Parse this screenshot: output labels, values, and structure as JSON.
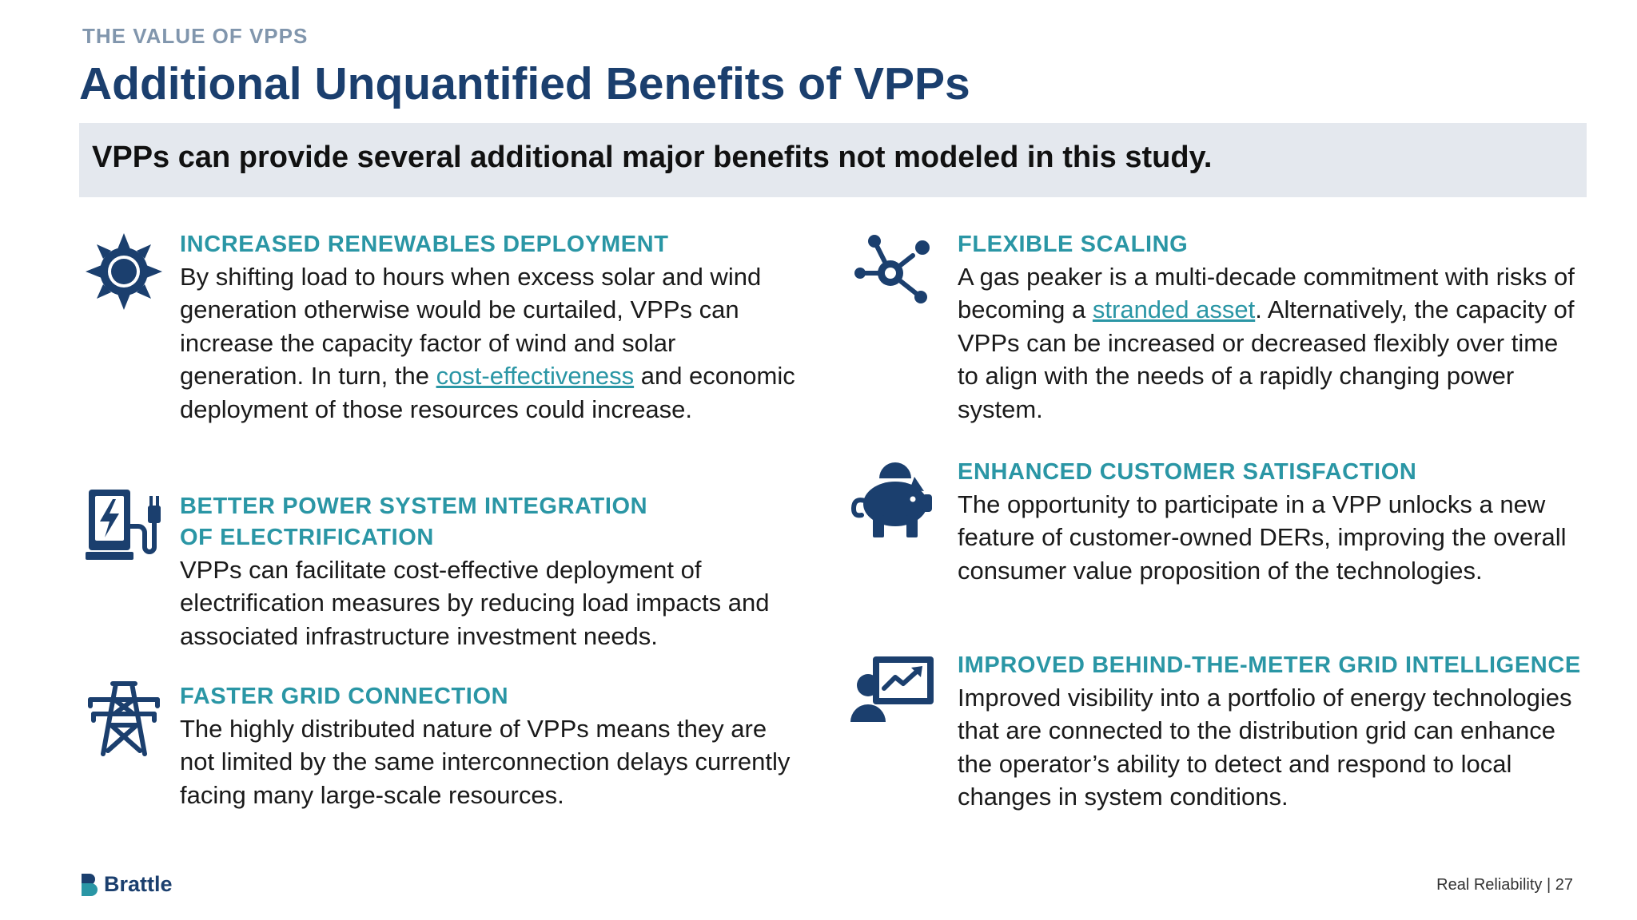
{
  "header": {
    "eyebrow": "THE VALUE OF VPPS",
    "title": "Additional Unquantified Benefits of VPPs",
    "banner": "VPPs can provide several additional major benefits not modeled in this study."
  },
  "colors": {
    "navy": "#1b3f6e",
    "teal": "#2a96a5",
    "banner_bg": "#e4e8ee",
    "eyebrow": "#8196ad"
  },
  "benefits": {
    "renewables": {
      "icon": "sun-icon",
      "heading": "INCREASED RENEWABLES DEPLOYMENT",
      "text_before_link": "By shifting load to hours when excess solar and wind generation otherwise would be curtailed, VPPs can increase the capacity factor of wind and solar generation. In turn, the ",
      "link": "cost-effectiveness",
      "text_after_link": " and economic deployment of those resources could increase."
    },
    "electrification": {
      "icon": "ev-charger-icon",
      "heading_line1": "BETTER POWER SYSTEM INTEGRATION",
      "heading_line2": "OF ELECTRIFICATION",
      "text": "VPPs can facilitate cost-effective deployment of electrification measures by reducing load impacts and associated infrastructure investment needs."
    },
    "grid_connection": {
      "icon": "transmission-tower-icon",
      "heading": "FASTER GRID CONNECTION",
      "text": "The highly distributed nature of VPPs means they are not limited by the same interconnection delays currently facing many large-scale resources."
    },
    "scaling": {
      "icon": "network-nodes-icon",
      "heading": "FLEXIBLE SCALING",
      "text_before_link": "A gas peaker is a multi-decade commitment with risks of becoming a ",
      "link": "stranded asset",
      "text_after_link": ". Alternatively, the capacity of VPPs can be increased or decreased flexibly over time to align with the needs of a rapidly changing power system."
    },
    "satisfaction": {
      "icon": "piggy-bank-icon",
      "heading": "ENHANCED CUSTOMER SATISFACTION",
      "text": "The opportunity to participate in a VPP unlocks a new feature of customer-owned DERs, improving the overall consumer value proposition of the technologies."
    },
    "intelligence": {
      "icon": "presentation-chart-icon",
      "heading": "IMPROVED BEHIND-THE-METER GRID INTELLIGENCE",
      "text": "Improved visibility into a portfolio of energy technologies that are connected to the distribution grid can enhance the operator’s ability to detect and respond to local changes in system conditions."
    }
  },
  "footer": {
    "logo_text": "Brattle",
    "text": "Real Reliability | 27"
  }
}
